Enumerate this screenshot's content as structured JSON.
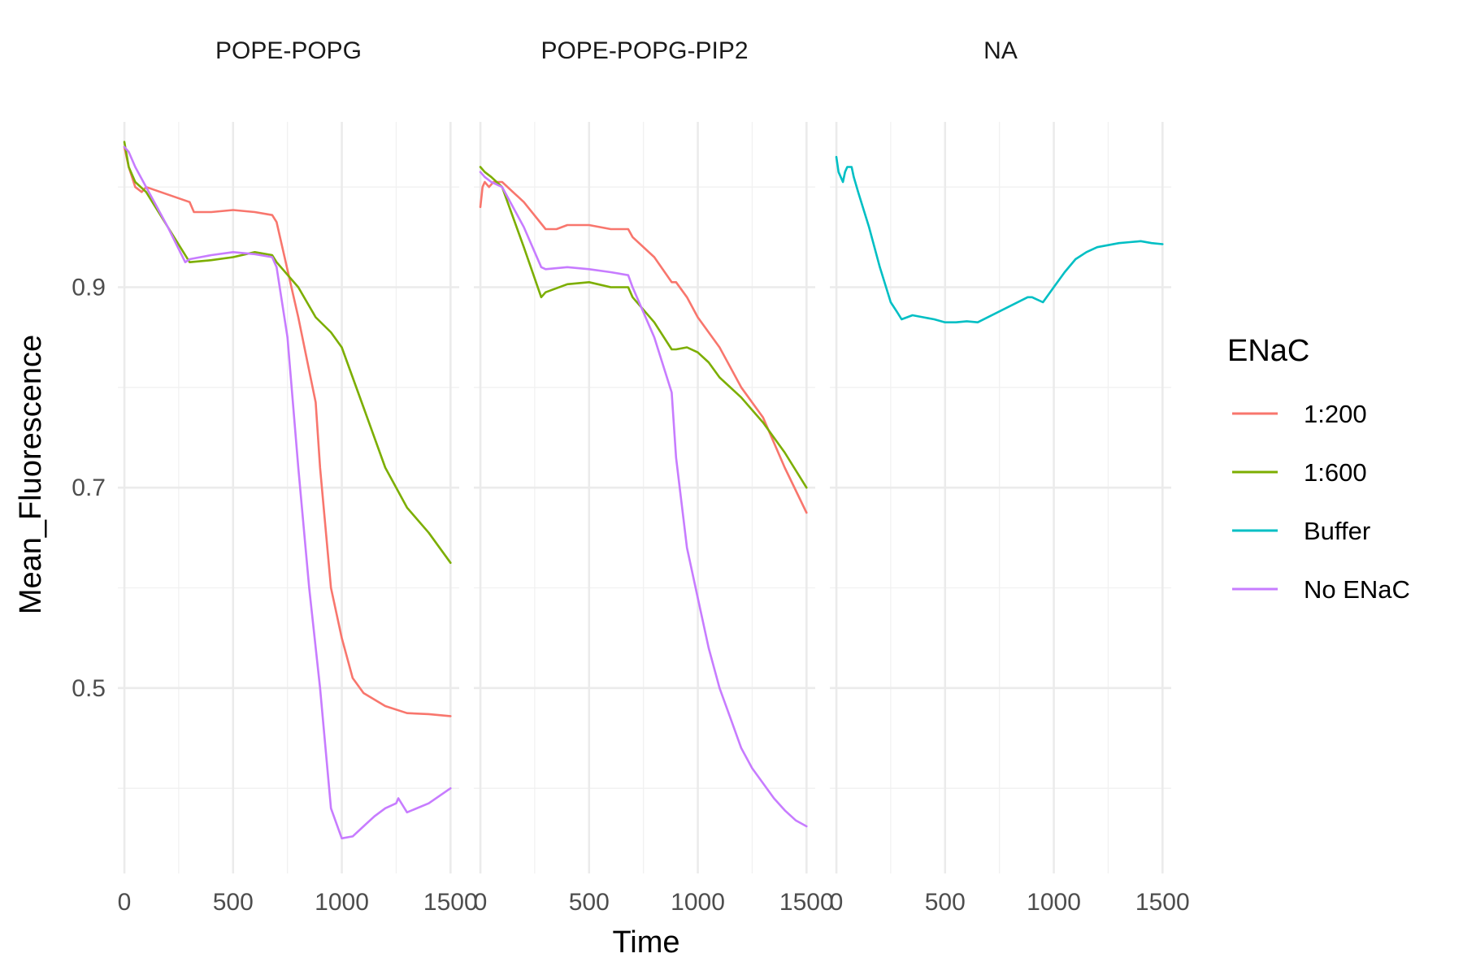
{
  "chart_data": {
    "type": "line",
    "xlabel": "Time",
    "ylabel": "Mean_Fluorescence",
    "xlim": [
      -30,
      1540
    ],
    "ylim": [
      0.315,
      1.065
    ],
    "x_ticks": [
      0,
      500,
      1000,
      1500
    ],
    "x_tick_labels": [
      "0",
      "500",
      "1000",
      "1500"
    ],
    "x_minor_ticks": [
      250,
      750,
      1250
    ],
    "y_ticks": [
      0.5,
      0.7,
      0.9
    ],
    "y_tick_labels": [
      "0.5",
      "0.7",
      "0.9"
    ],
    "y_minor_ticks": [
      0.4,
      0.6,
      0.8,
      1.0
    ],
    "grid": true,
    "legend": {
      "title": "ENaC",
      "position": "right"
    },
    "series_styles": [
      {
        "name": "1:200",
        "color": "#F8766D"
      },
      {
        "name": "1:600",
        "color": "#7CAE00"
      },
      {
        "name": "Buffer",
        "color": "#00BFC4"
      },
      {
        "name": "No ENaC",
        "color": "#C77CFF"
      }
    ],
    "panels": [
      {
        "label": "POPE-POPG",
        "series": [
          {
            "name": "1:200",
            "x": [
              0,
              20,
              50,
              80,
              100,
              300,
              320,
              400,
              500,
              600,
              680,
              700,
              800,
              880,
              900,
              950,
              1000,
              1050,
              1100,
              1200,
              1300,
              1400,
              1500
            ],
            "y": [
              1.04,
              1.02,
              1.0,
              0.995,
              1.0,
              0.985,
              0.975,
              0.975,
              0.977,
              0.975,
              0.972,
              0.965,
              0.87,
              0.785,
              0.72,
              0.6,
              0.55,
              0.51,
              0.495,
              0.482,
              0.475,
              0.474,
              0.472
            ]
          },
          {
            "name": "1:600",
            "x": [
              0,
              20,
              50,
              100,
              200,
              300,
              400,
              500,
              600,
              680,
              700,
              800,
              880,
              950,
              1000,
              1050,
              1100,
              1200,
              1300,
              1400,
              1500
            ],
            "y": [
              1.045,
              1.02,
              1.005,
              0.995,
              0.96,
              0.925,
              0.927,
              0.93,
              0.935,
              0.932,
              0.925,
              0.9,
              0.87,
              0.855,
              0.84,
              0.81,
              0.78,
              0.72,
              0.68,
              0.655,
              0.625
            ]
          },
          {
            "name": "No ENaC",
            "x": [
              0,
              20,
              50,
              100,
              200,
              280,
              300,
              400,
              500,
              600,
              680,
              700,
              750,
              800,
              850,
              900,
              950,
              1000,
              1050,
              1100,
              1150,
              1200,
              1250,
              1260,
              1300,
              1400,
              1500
            ],
            "y": [
              1.04,
              1.035,
              1.02,
              1.0,
              0.96,
              0.925,
              0.928,
              0.932,
              0.935,
              0.933,
              0.93,
              0.92,
              0.85,
              0.72,
              0.6,
              0.5,
              0.38,
              0.35,
              0.352,
              0.362,
              0.372,
              0.38,
              0.385,
              0.39,
              0.376,
              0.385,
              0.4
            ]
          }
        ]
      },
      {
        "label": "POPE-POPG-PIP2",
        "series": [
          {
            "name": "1:200",
            "x": [
              0,
              10,
              20,
              40,
              60,
              100,
              200,
              300,
              350,
              400,
              500,
              600,
              680,
              700,
              800,
              880,
              900,
              950,
              1000,
              1100,
              1200,
              1300,
              1400,
              1500
            ],
            "y": [
              0.98,
              1.0,
              1.005,
              1.0,
              1.005,
              1.005,
              0.985,
              0.958,
              0.958,
              0.962,
              0.962,
              0.958,
              0.958,
              0.95,
              0.93,
              0.905,
              0.905,
              0.89,
              0.87,
              0.84,
              0.8,
              0.77,
              0.72,
              0.675
            ]
          },
          {
            "name": "1:600",
            "x": [
              0,
              20,
              50,
              100,
              200,
              280,
              300,
              400,
              500,
              600,
              680,
              700,
              800,
              880,
              900,
              950,
              1000,
              1050,
              1100,
              1200,
              1300,
              1400,
              1500
            ],
            "y": [
              1.02,
              1.015,
              1.01,
              1.0,
              0.94,
              0.89,
              0.895,
              0.903,
              0.905,
              0.9,
              0.9,
              0.89,
              0.865,
              0.838,
              0.838,
              0.84,
              0.835,
              0.825,
              0.81,
              0.79,
              0.765,
              0.735,
              0.7
            ]
          },
          {
            "name": "No ENaC",
            "x": [
              0,
              20,
              50,
              100,
              200,
              280,
              300,
              400,
              500,
              600,
              680,
              700,
              800,
              880,
              900,
              950,
              1000,
              1050,
              1100,
              1150,
              1200,
              1250,
              1300,
              1350,
              1400,
              1450,
              1500
            ],
            "y": [
              1.015,
              1.01,
              1.005,
              1.0,
              0.96,
              0.92,
              0.918,
              0.92,
              0.918,
              0.915,
              0.912,
              0.9,
              0.85,
              0.795,
              0.73,
              0.64,
              0.59,
              0.54,
              0.5,
              0.47,
              0.44,
              0.42,
              0.405,
              0.39,
              0.378,
              0.368,
              0.362
            ]
          }
        ]
      },
      {
        "label": "NA",
        "series": [
          {
            "name": "Buffer",
            "x": [
              0,
              10,
              20,
              30,
              40,
              50,
              60,
              70,
              80,
              100,
              150,
              200,
              250,
              280,
              300,
              350,
              400,
              450,
              500,
              550,
              600,
              650,
              880,
              900,
              950,
              1000,
              1050,
              1100,
              1150,
              1200,
              1250,
              1300,
              1350,
              1400,
              1450,
              1500
            ],
            "y": [
              1.03,
              1.015,
              1.01,
              1.005,
              1.015,
              1.02,
              1.02,
              1.02,
              1.01,
              0.995,
              0.96,
              0.92,
              0.885,
              0.875,
              0.868,
              0.872,
              0.87,
              0.868,
              0.865,
              0.865,
              0.866,
              0.865,
              0.89,
              0.89,
              0.885,
              0.9,
              0.915,
              0.928,
              0.935,
              0.94,
              0.942,
              0.944,
              0.945,
              0.946,
              0.944,
              0.943
            ]
          }
        ]
      }
    ]
  }
}
